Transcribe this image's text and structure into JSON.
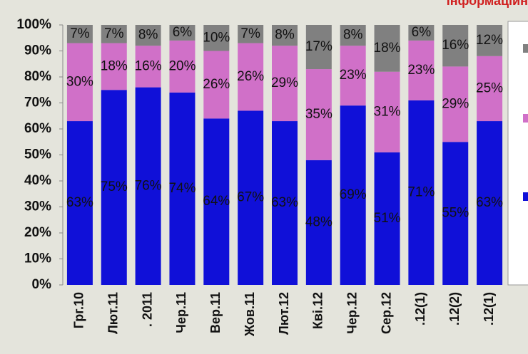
{
  "chart_data": {
    "type": "stacked_bar",
    "title": "інформаційн",
    "categories": [
      "Грг.10",
      "Лют.11",
      ". 2011",
      "Чер.11",
      "Вер.11",
      "Жов.11",
      "Лют.12",
      "Кві.12",
      "Чер.12",
      "Сер.12",
      ".12(1)",
      ".12(2)",
      ".12(1)"
    ],
    "series": [
      {
        "color": "#1010d8",
        "values": [
          63,
          75,
          76,
          74,
          64,
          67,
          63,
          48,
          69,
          51,
          71,
          55,
          63
        ],
        "value_labels": [
          "63%",
          "75%",
          "76%",
          "74%",
          "64%",
          "67%",
          "63%",
          "48%",
          "69%",
          "51%",
          "71%",
          "55%",
          "63%"
        ]
      },
      {
        "color": "#d070c8",
        "values": [
          30,
          18,
          16,
          20,
          26,
          26,
          29,
          35,
          23,
          31,
          23,
          29,
          25
        ],
        "value_labels": [
          "30%",
          "18%",
          "16%",
          "20%",
          "26%",
          "26%",
          "29%",
          "35%",
          "23%",
          "31%",
          "23%",
          "29%",
          "25%"
        ]
      },
      {
        "color": "#808080",
        "values": [
          7,
          7,
          8,
          6,
          10,
          7,
          8,
          17,
          8,
          18,
          6,
          16,
          12
        ],
        "value_labels": [
          "7%",
          "7%",
          "8%",
          "6%",
          "10%",
          "7%",
          "8%",
          "17%",
          "8%",
          "18%",
          "6%",
          "16%",
          "12%"
        ]
      }
    ],
    "ylim": [
      0,
      100
    ],
    "yticks": [
      {
        "value": 0,
        "label": "0%"
      },
      {
        "value": 10,
        "label": "10%"
      },
      {
        "value": 20,
        "label": "20%"
      },
      {
        "value": 30,
        "label": "30%"
      },
      {
        "value": 40,
        "label": "40%"
      },
      {
        "value": 50,
        "label": "50%"
      },
      {
        "value": 60,
        "label": "60%"
      },
      {
        "value": 70,
        "label": "70%"
      },
      {
        "value": 80,
        "label": "80%"
      },
      {
        "value": 90,
        "label": "90%"
      },
      {
        "value": 100,
        "label": "100%"
      }
    ],
    "legend": "right"
  }
}
